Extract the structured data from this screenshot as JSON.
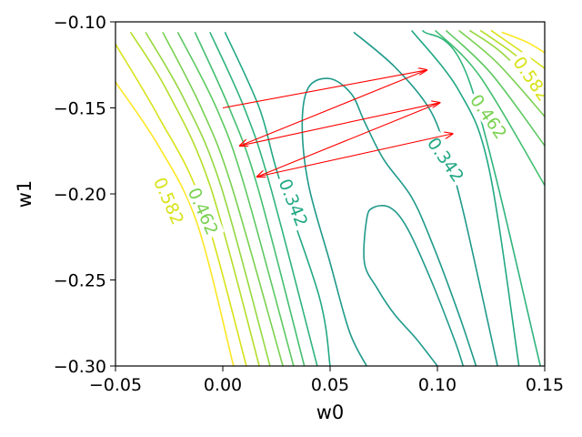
{
  "chart_data": {
    "type": "contour",
    "title": "",
    "xlabel": "w0",
    "ylabel": "w1",
    "xlim": [
      -0.05,
      0.15
    ],
    "ylim": [
      -0.3,
      -0.1
    ],
    "x_ticks": [
      -0.05,
      0.0,
      0.05,
      0.1,
      0.15
    ],
    "x_tick_labels": [
      "−0.05",
      "0.00",
      "0.05",
      "0.10",
      "0.15"
    ],
    "y_ticks": [
      -0.3,
      -0.25,
      -0.2,
      -0.15,
      -0.1
    ],
    "y_tick_labels": [
      "−0.30",
      "−0.25",
      "−0.20",
      "−0.15",
      "−0.10"
    ],
    "grid": false,
    "contour_labels": [
      {
        "text": "0.582",
        "at": [
          -0.025,
          -0.204
        ],
        "angle": 66,
        "color": "#d8e219"
      },
      {
        "text": "0.462",
        "at": [
          -0.009,
          -0.21
        ],
        "angle": 66,
        "color": "#7ad151"
      },
      {
        "text": "0.342",
        "at": [
          0.033,
          -0.205
        ],
        "angle": 68,
        "color": "#22a884"
      },
      {
        "text": "0.342",
        "at": [
          0.104,
          -0.18
        ],
        "angle": 55,
        "color": "#22a884"
      },
      {
        "text": "0.462",
        "at": [
          0.124,
          -0.155
        ],
        "angle": 55,
        "color": "#7ad151"
      },
      {
        "text": "0.582",
        "at": [
          0.144,
          -0.133
        ],
        "angle": 55,
        "color": "#d8e219"
      }
    ],
    "contour_levels": [
      {
        "color": "#fde725",
        "lines": [
          [
            [
              -0.05,
              -0.135
            ],
            [
              -0.03,
              -0.172
            ],
            [
              -0.012,
              -0.217
            ],
            [
              0.005,
              -0.3
            ]
          ],
          [
            [
              0.13,
              -0.106
            ],
            [
              0.142,
              -0.112
            ],
            [
              0.15,
              -0.118
            ]
          ]
        ]
      },
      {
        "color": "#d8e219",
        "lines": [
          [
            [
              -0.05,
              -0.113
            ],
            [
              -0.03,
              -0.155
            ],
            [
              -0.01,
              -0.205
            ],
            [
              0.011,
              -0.3
            ]
          ],
          [
            [
              0.125,
              -0.105
            ],
            [
              0.14,
              -0.118
            ],
            [
              0.15,
              -0.127
            ]
          ]
        ]
      },
      {
        "color": "#b5de2b",
        "lines": [
          [
            [
              -0.043,
              -0.106
            ],
            [
              -0.026,
              -0.14
            ],
            [
              -0.006,
              -0.195
            ],
            [
              0.017,
              -0.3
            ]
          ],
          [
            [
              0.12,
              -0.105
            ],
            [
              0.135,
              -0.118
            ],
            [
              0.15,
              -0.134
            ]
          ]
        ]
      },
      {
        "color": "#95d840",
        "lines": [
          [
            [
              -0.036,
              -0.106
            ],
            [
              -0.018,
              -0.145
            ],
            [
              -0.001,
              -0.195
            ],
            [
              0.022,
              -0.3
            ]
          ],
          [
            [
              0.115,
              -0.105
            ],
            [
              0.13,
              -0.118
            ],
            [
              0.15,
              -0.143
            ]
          ]
        ]
      },
      {
        "color": "#7ad151",
        "lines": [
          [
            [
              -0.028,
              -0.106
            ],
            [
              -0.01,
              -0.15
            ],
            [
              0.004,
              -0.195
            ],
            [
              0.028,
              -0.3
            ]
          ],
          [
            [
              0.11,
              -0.105
            ],
            [
              0.128,
              -0.124
            ],
            [
              0.15,
              -0.155
            ]
          ]
        ]
      },
      {
        "color": "#5ec962",
        "lines": [
          [
            [
              -0.021,
              -0.106
            ],
            [
              -0.003,
              -0.15
            ],
            [
              0.01,
              -0.195
            ],
            [
              0.033,
              -0.3
            ]
          ],
          [
            [
              0.104,
              -0.105
            ],
            [
              0.125,
              -0.13
            ],
            [
              0.15,
              -0.172
            ]
          ]
        ]
      },
      {
        "color": "#44bf70",
        "lines": [
          [
            [
              -0.013,
              -0.106
            ],
            [
              0.003,
              -0.15
            ],
            [
              0.016,
              -0.195
            ],
            [
              0.038,
              -0.3
            ]
          ],
          [
            [
              0.099,
              -0.105
            ],
            [
              0.12,
              -0.132
            ],
            [
              0.15,
              -0.195
            ]
          ]
        ]
      },
      {
        "color": "#2fb47c",
        "lines": [
          [
            [
              -0.006,
              -0.106
            ],
            [
              0.01,
              -0.15
            ],
            [
              0.022,
              -0.195
            ],
            [
              0.044,
              -0.3
            ]
          ],
          [
            [
              0.093,
              -0.105
            ],
            [
              0.115,
              -0.135
            ],
            [
              0.148,
              -0.3
            ]
          ]
        ]
      },
      {
        "color": "#22a884",
        "lines": [
          [
            [
              0.001,
              -0.106
            ],
            [
              0.017,
              -0.15
            ],
            [
              0.026,
              -0.19
            ],
            [
              0.045,
              -0.26
            ],
            [
              0.05,
              -0.3
            ]
          ],
          [
            [
              0.088,
              -0.105
            ],
            [
              0.11,
              -0.14
            ],
            [
              0.124,
              -0.185
            ],
            [
              0.138,
              -0.3
            ]
          ]
        ]
      },
      {
        "color": "#1f9a8a",
        "lines": [
          [
            [
              0.061,
              -0.106
            ],
            [
              0.08,
              -0.126
            ],
            [
              0.096,
              -0.15
            ],
            [
              0.104,
              -0.175
            ],
            [
              0.112,
              -0.21
            ],
            [
              0.128,
              -0.3
            ]
          ],
          [
            [
              0.067,
              -0.3
            ],
            [
              0.059,
              -0.28
            ],
            [
              0.05,
              -0.24
            ],
            [
              0.04,
              -0.195
            ],
            [
              0.037,
              -0.16
            ],
            [
              0.04,
              -0.138
            ],
            [
              0.05,
              -0.133
            ],
            [
              0.06,
              -0.142
            ],
            [
              0.066,
              -0.158
            ],
            [
              0.075,
              -0.18
            ],
            [
              0.088,
              -0.202
            ],
            [
              0.098,
              -0.23
            ],
            [
              0.11,
              -0.27
            ],
            [
              0.118,
              -0.3
            ]
          ],
          [
            [
              0.1,
              -0.3
            ],
            [
              0.09,
              -0.284
            ],
            [
              0.08,
              -0.27
            ],
            [
              0.072,
              -0.255
            ],
            [
              0.066,
              -0.24
            ],
            [
              0.067,
              -0.215
            ],
            [
              0.07,
              -0.208
            ],
            [
              0.078,
              -0.208
            ],
            [
              0.086,
              -0.22
            ],
            [
              0.097,
              -0.25
            ],
            [
              0.108,
              -0.285
            ],
            [
              0.112,
              -0.3
            ]
          ]
        ]
      }
    ],
    "path_color": "#ff0000",
    "path_points": [
      [
        0.0,
        -0.15
      ],
      [
        0.095,
        -0.128
      ],
      [
        0.008,
        -0.172
      ],
      [
        0.101,
        -0.147
      ],
      [
        0.016,
        -0.19
      ],
      [
        0.107,
        -0.165
      ]
    ]
  }
}
